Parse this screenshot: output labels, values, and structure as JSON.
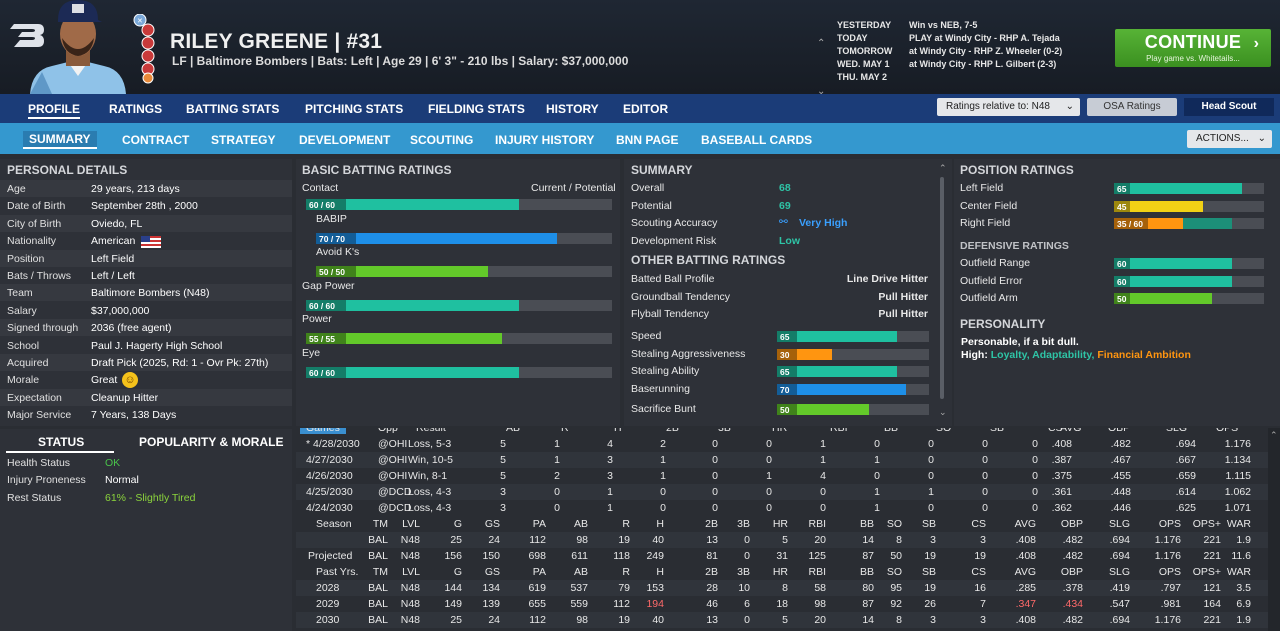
{
  "player": {
    "name": "RILEY GREENE",
    "number": "#31",
    "info": "LF | Baltimore Bombers  |  Bats: Left  |  Age 29  |  6' 3\" - 210 lbs  |  Salary: $37,000,000"
  },
  "schedule": [
    {
      "day": "YESTERDAY",
      "event": "Win vs NEB, 7-5"
    },
    {
      "day": "TODAY",
      "event": "PLAY at Windy City - RHP A. Tejada"
    },
    {
      "day": "TOMORROW",
      "event": "at Windy City - RHP Z. Wheeler (0-2)"
    },
    {
      "day": "WED. MAY 1",
      "event": "at Windy City - RHP L. Gilbert (2-3)"
    },
    {
      "day": "THU. MAY 2",
      "event": ""
    }
  ],
  "continue": {
    "label": "CONTINUE",
    "sub": "Play game vs. Whitetails..."
  },
  "nav1": [
    "PROFILE",
    "RATINGS",
    "BATTING STATS",
    "PITCHING STATS",
    "FIELDING STATS",
    "HISTORY",
    "EDITOR"
  ],
  "ratings_rel": "Ratings relative to: N48",
  "osa": "OSA Ratings",
  "head_scout": "Head Scout",
  "nav2": [
    "SUMMARY",
    "CONTRACT",
    "STRATEGY",
    "DEVELOPMENT",
    "SCOUTING",
    "INJURY HISTORY",
    "BNN PAGE",
    "BASEBALL CARDS"
  ],
  "actions": "ACTIONS...",
  "personal": {
    "title": "PERSONAL DETAILS",
    "rows": [
      {
        "k": "Age",
        "v": "29 years, 213 days"
      },
      {
        "k": "Date of Birth",
        "v": "September 28th , 2000"
      },
      {
        "k": "City of Birth",
        "v": "Oviedo, FL"
      },
      {
        "k": "Nationality",
        "v": "American"
      },
      {
        "k": "Position",
        "v": "Left Field"
      },
      {
        "k": "Bats / Throws",
        "v": "Left / Left"
      },
      {
        "k": "Team",
        "v": "Baltimore Bombers (N48)"
      },
      {
        "k": "Salary",
        "v": "$37,000,000"
      },
      {
        "k": "Signed through",
        "v": "2036 (free agent)"
      },
      {
        "k": "School",
        "v": "Paul J. Hagerty High School"
      },
      {
        "k": "Acquired",
        "v": "Draft Pick (2025, Rd: 1 - Ovr Pk: 27th)"
      },
      {
        "k": "Morale",
        "v": "Great"
      },
      {
        "k": "Expectation",
        "v": "Cleanup Hitter"
      },
      {
        "k": "Major Service",
        "v": "7 Years, 138 Days"
      }
    ]
  },
  "status": {
    "tab1": "STATUS",
    "tab2": "POPULARITY & MORALE",
    "rows": [
      {
        "k": "Health Status",
        "v": "OK",
        "color": "#49c24a"
      },
      {
        "k": "Injury Proneness",
        "v": "Normal",
        "color": "#ffffff"
      },
      {
        "k": "Rest Status",
        "v": "61% - Slightly Tired",
        "color": "#8bd43c"
      }
    ]
  },
  "batting": {
    "title": "BASIC BATTING RATINGS",
    "cp": "Current / Potential",
    "rows": [
      {
        "label": "Contact",
        "badge": "60 / 60",
        "value": 60,
        "color": "#1fc0a0",
        "indent": false
      },
      {
        "label": "BABIP",
        "badge": "70 / 70",
        "value": 70,
        "color": "#1e8fe8",
        "indent": true
      },
      {
        "label": "Avoid K's",
        "badge": "50 / 50",
        "value": 50,
        "color": "#63c92a",
        "indent": true
      },
      {
        "label": "Gap Power",
        "badge": "60 / 60",
        "value": 60,
        "color": "#1fc0a0",
        "indent": false
      },
      {
        "label": "Power",
        "badge": "55 / 55",
        "value": 55,
        "color": "#63c92a",
        "indent": false
      },
      {
        "label": "Eye",
        "badge": "60 / 60",
        "value": 60,
        "color": "#1fc0a0",
        "indent": false
      }
    ]
  },
  "summary": {
    "title": "SUMMARY",
    "rows": [
      {
        "k": "Overall",
        "v": "68",
        "color": "#2ec4a6"
      },
      {
        "k": "Potential",
        "v": "69",
        "color": "#2ec4a6"
      },
      {
        "k": "Scouting Accuracy",
        "v": "Very High",
        "color": "#3aa0ff"
      },
      {
        "k": "Development Risk",
        "v": "Low",
        "color": "#2ec4a6"
      }
    ],
    "other_title": "OTHER BATTING RATINGS",
    "other": [
      {
        "k": "Batted Ball Profile",
        "v": "Line Drive Hitter"
      },
      {
        "k": "Groundball Tendency",
        "v": "Pull Hitter"
      },
      {
        "k": "Flyball Tendency",
        "v": "Pull Hitter"
      }
    ],
    "bars": [
      {
        "k": "Speed",
        "value": 65,
        "color": "#1fc0a0"
      },
      {
        "k": "Stealing Aggressiveness",
        "value": 30,
        "color": "#ff9510"
      },
      {
        "k": "Stealing Ability",
        "value": 65,
        "color": "#1fc0a0"
      },
      {
        "k": "Baserunning",
        "value": 70,
        "color": "#1e8fe8"
      },
      {
        "k": "Sacrifice Bunt",
        "value": 50,
        "color": "#63c92a"
      }
    ]
  },
  "position": {
    "title": "POSITION RATINGS",
    "rows": [
      {
        "k": "Left Field",
        "badge": "65",
        "value": 65,
        "color": "#1fc0a0"
      },
      {
        "k": "Center Field",
        "badge": "45",
        "value": 45,
        "color": "#f1d115"
      },
      {
        "k": "Right Field",
        "badge": "35 / 60",
        "value": 35,
        "pot": 60,
        "color": "#ff9510"
      }
    ],
    "def_title": "DEFENSIVE RATINGS",
    "def": [
      {
        "k": "Outfield Range",
        "badge": "60",
        "value": 60,
        "color": "#1fc0a0"
      },
      {
        "k": "Outfield Error",
        "badge": "60",
        "value": 60,
        "color": "#1fc0a0"
      },
      {
        "k": "Outfield Arm",
        "badge": "50",
        "value": 50,
        "color": "#63c92a"
      }
    ],
    "pers_title": "PERSONALITY",
    "pers_desc": "Personable, if a bit dull.",
    "high_label": "High:",
    "high_traits": "Loyalty, Adaptability,",
    "high_traits2": "Financial Ambition"
  },
  "games": {
    "header": [
      "Games",
      "Opp",
      "Result",
      "AB",
      "R",
      "H",
      "2B",
      "3B",
      "HR",
      "RBI",
      "BB",
      "SO",
      "SB",
      "CS",
      "AVG",
      "OBP",
      "SLG",
      "OPS"
    ],
    "rows": [
      [
        "* 4/28/2030",
        "@OHI",
        "Loss, 5-3",
        "5",
        "1",
        "4",
        "2",
        "0",
        "0",
        "1",
        "0",
        "0",
        "0",
        "0",
        ".408",
        ".482",
        ".694",
        "1.176"
      ],
      [
        "4/27/2030",
        "@OHI",
        "Win, 10-5",
        "5",
        "1",
        "3",
        "1",
        "0",
        "0",
        "1",
        "1",
        "0",
        "0",
        "0",
        ".387",
        ".467",
        ".667",
        "1.134"
      ],
      [
        "4/26/2030",
        "@OHI",
        "Win, 8-1",
        "5",
        "2",
        "3",
        "1",
        "0",
        "1",
        "4",
        "0",
        "0",
        "0",
        "0",
        ".375",
        ".455",
        ".659",
        "1.115"
      ],
      [
        "4/25/2030",
        "@DCD",
        "Loss, 4-3",
        "3",
        "0",
        "1",
        "0",
        "0",
        "0",
        "0",
        "1",
        "1",
        "0",
        "0",
        ".361",
        ".448",
        ".614",
        "1.062"
      ],
      [
        "4/24/2030",
        "@DCD",
        "Loss, 4-3",
        "3",
        "0",
        "1",
        "0",
        "0",
        "0",
        "0",
        "1",
        "0",
        "0",
        "0",
        ".362",
        ".446",
        ".625",
        "1.071"
      ]
    ]
  },
  "season": {
    "header": [
      "Season",
      "TM",
      "LVL",
      "G",
      "GS",
      "PA",
      "AB",
      "R",
      "H",
      "2B",
      "3B",
      "HR",
      "RBI",
      "BB",
      "SO",
      "SB",
      "CS",
      "AVG",
      "OBP",
      "SLG",
      "OPS",
      "OPS+",
      "WAR"
    ],
    "rows": [
      [
        "",
        "BAL",
        "N48",
        "25",
        "24",
        "112",
        "98",
        "19",
        "40",
        "13",
        "0",
        "5",
        "20",
        "14",
        "8",
        "3",
        "3",
        ".408",
        ".482",
        ".694",
        "1.176",
        "221",
        "1.9"
      ],
      [
        "Projected",
        "BAL",
        "N48",
        "156",
        "150",
        "698",
        "611",
        "118",
        "249",
        "81",
        "0",
        "31",
        "125",
        "87",
        "50",
        "19",
        "19",
        ".408",
        ".482",
        ".694",
        "1.176",
        "221",
        "11.6"
      ]
    ]
  },
  "past": {
    "header": [
      "Past Yrs.",
      "TM",
      "LVL",
      "G",
      "GS",
      "PA",
      "AB",
      "R",
      "H",
      "2B",
      "3B",
      "HR",
      "RBI",
      "BB",
      "SO",
      "SB",
      "CS",
      "AVG",
      "OBP",
      "SLG",
      "OPS",
      "OPS+",
      "WAR"
    ],
    "rows": [
      [
        "2028",
        "BAL",
        "N48",
        "144",
        "134",
        "619",
        "537",
        "79",
        "153",
        "28",
        "10",
        "8",
        "58",
        "80",
        "95",
        "19",
        "16",
        ".285",
        ".378",
        ".419",
        ".797",
        "121",
        "3.5"
      ],
      [
        "2029",
        "BAL",
        "N48",
        "149",
        "139",
        "655",
        "559",
        "112",
        "194",
        "46",
        "6",
        "18",
        "98",
        "87",
        "92",
        "26",
        "7",
        ".347",
        ".434",
        ".547",
        ".981",
        "164",
        "6.9"
      ],
      [
        "2030",
        "BAL",
        "N48",
        "25",
        "24",
        "112",
        "98",
        "19",
        "40",
        "13",
        "0",
        "5",
        "20",
        "14",
        "8",
        "3",
        "3",
        ".408",
        ".482",
        ".694",
        "1.176",
        "221",
        "1.9"
      ]
    ]
  },
  "colors": {
    "teal": "#1fc0a0",
    "blue": "#1e8fe8",
    "green": "#63c92a",
    "orange": "#ff9510",
    "yellow": "#f1d115",
    "red": "#ff6a6a",
    "nav": "#1b3c78",
    "subnav": "#3498cf",
    "continue": "#4aa52c"
  }
}
